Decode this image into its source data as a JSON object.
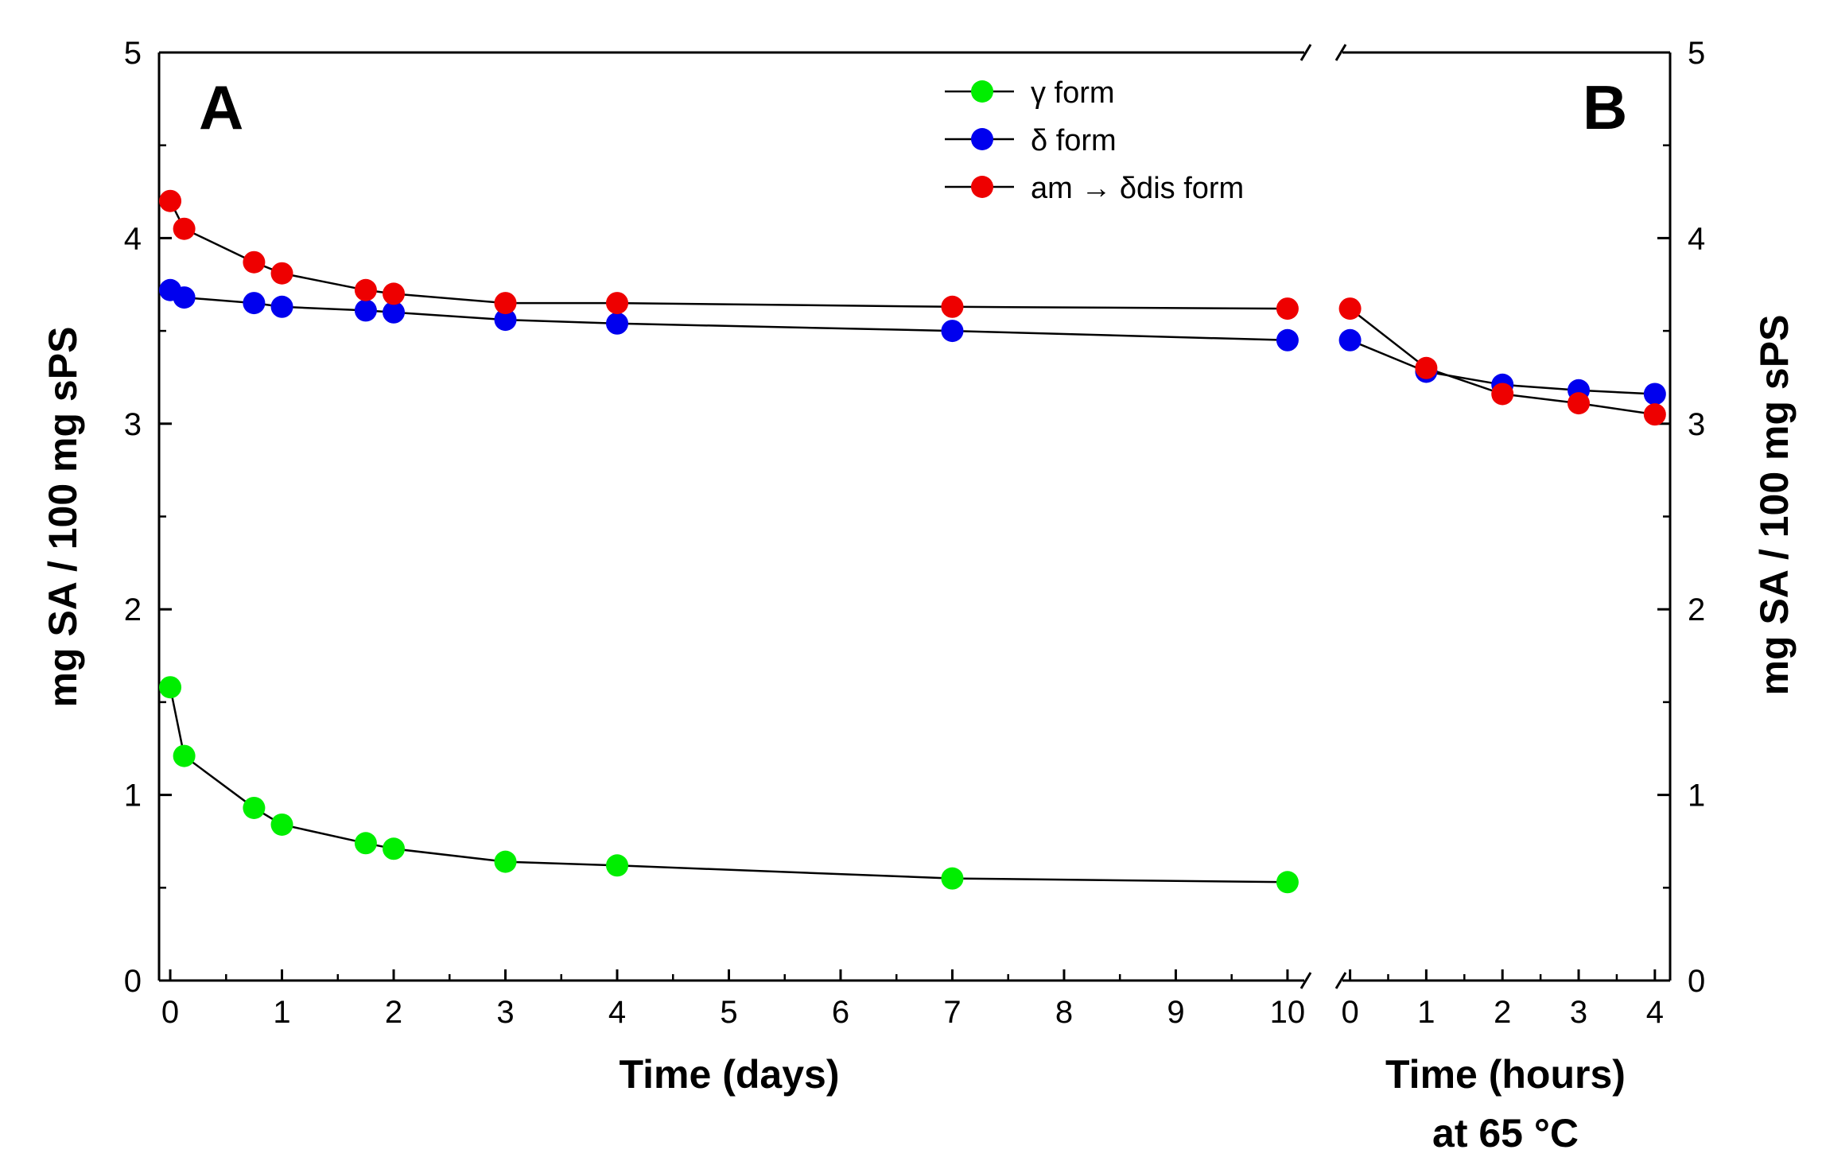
{
  "chart_data": [
    {
      "panel": "A",
      "type": "line",
      "title": "A",
      "xlabel": "Time (days)",
      "ylabel": "mg SA / 100 mg sPS",
      "xlim": [
        -0.1,
        10.15
      ],
      "ylim": [
        0,
        5
      ],
      "x_ticks": [
        0,
        1,
        2,
        3,
        4,
        5,
        6,
        7,
        8,
        9,
        10
      ],
      "y_ticks": [
        0,
        1,
        2,
        3,
        4,
        5
      ],
      "series": [
        {
          "name": "γ form",
          "color": "#00ee00",
          "x": [
            0,
            0.125,
            0.75,
            1,
            1.75,
            2,
            3,
            4,
            7,
            10
          ],
          "y": [
            1.58,
            1.21,
            0.93,
            0.84,
            0.74,
            0.71,
            0.64,
            0.62,
            0.55,
            0.53
          ]
        },
        {
          "name": "δ form",
          "color": "#0000ee",
          "x": [
            0,
            0.125,
            0.75,
            1,
            1.75,
            2,
            3,
            4,
            7,
            10
          ],
          "y": [
            3.72,
            3.68,
            3.65,
            3.63,
            3.61,
            3.6,
            3.56,
            3.54,
            3.5,
            3.45
          ]
        },
        {
          "name": "am → δdis form",
          "color": "#ee0000",
          "x": [
            0,
            0.125,
            0.75,
            1,
            1.75,
            2,
            3,
            4,
            7,
            10
          ],
          "y": [
            4.2,
            4.05,
            3.87,
            3.81,
            3.72,
            3.7,
            3.65,
            3.65,
            3.63,
            3.62
          ]
        }
      ]
    },
    {
      "panel": "B",
      "type": "line",
      "title": "B",
      "xlabel": [
        "Time (hours)",
        "at 65 °C"
      ],
      "ylabel": "mg SA / 100 mg sPS",
      "xlim": [
        -0.1,
        4.2
      ],
      "ylim": [
        0,
        5
      ],
      "x_ticks": [
        0,
        1,
        2,
        3,
        4
      ],
      "y_ticks": [
        0,
        1,
        2,
        3,
        4,
        5
      ],
      "series": [
        {
          "name": "δ form",
          "color": "#0000ee",
          "x": [
            0,
            1,
            2,
            3,
            4
          ],
          "y": [
            3.45,
            3.28,
            3.21,
            3.18,
            3.16
          ]
        },
        {
          "name": "am → δdis form",
          "color": "#ee0000",
          "x": [
            0,
            1,
            2,
            3,
            4
          ],
          "y": [
            3.62,
            3.3,
            3.16,
            3.11,
            3.05
          ]
        }
      ]
    }
  ],
  "legend": {
    "items": [
      {
        "label": "γ form",
        "color": "#00ee00"
      },
      {
        "label": "δ form",
        "color": "#0000ee"
      },
      {
        "label": "am → δdis form",
        "color": "#ee0000"
      }
    ]
  }
}
